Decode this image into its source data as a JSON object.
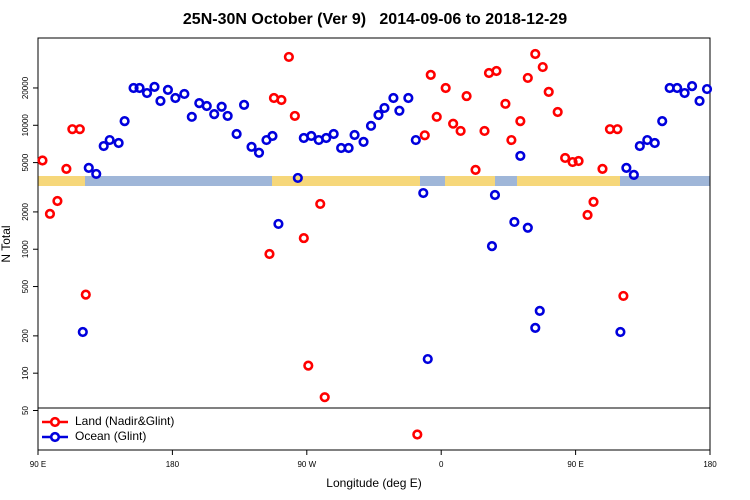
{
  "chart_data": {
    "type": "scatter",
    "title": "25N-30N October (Ver 9)   2014-09-06 to 2018-12-29",
    "xlabel": "Longitude (deg E)",
    "ylabel": "N Total",
    "xlim": [
      90,
      540
    ],
    "xticks": [
      {
        "value": 90,
        "label": "90 E"
      },
      180,
      {
        "value": 270,
        "label": "90 W"
      },
      {
        "value": 360,
        "label": "0"
      },
      {
        "value": 450,
        "label": "90 E"
      },
      {
        "value": 540,
        "label": "180"
      }
    ],
    "ylim": [
      24,
      50600
    ],
    "log_y": true,
    "yticks": [
      50,
      100,
      200,
      500,
      1000,
      2000,
      5000,
      10000,
      20000
    ],
    "legend": "bottom-left",
    "series": [
      {
        "name": "Land (Nadir&Glint)",
        "color": "#ff0000",
        "x": [
          93,
          98,
          103,
          109,
          113,
          118,
          122,
          245,
          248,
          253,
          258,
          262,
          268,
          271,
          279,
          282,
          344,
          349,
          353,
          357,
          363,
          368,
          373,
          377,
          383,
          389,
          392,
          397,
          403,
          407,
          413,
          418,
          423,
          428,
          432,
          438,
          443,
          448,
          452,
          458,
          462,
          468,
          473,
          478,
          482
        ],
        "values": [
          5200,
          1930,
          2450,
          4450,
          9300,
          9300,
          430,
          915,
          16600,
          16000,
          35600,
          11900,
          1230,
          115,
          2320,
          64,
          32,
          8300,
          25500,
          11700,
          20000,
          10300,
          9000,
          17200,
          4370,
          9000,
          26400,
          27400,
          14900,
          7600,
          10800,
          24100,
          37600,
          29500,
          18600,
          12800,
          5450,
          5050,
          5150,
          1890,
          2410,
          4450,
          9300,
          9300,
          420
        ]
      },
      {
        "name": "Ocean (Glint)",
        "color": "#0000dd",
        "x": [
          120,
          124,
          129,
          134,
          138,
          144,
          148,
          154,
          158,
          163,
          168,
          172,
          177,
          182,
          188,
          193,
          198,
          203,
          208,
          213,
          217,
          223,
          228,
          233,
          238,
          243,
          247,
          251,
          264,
          268,
          273,
          278,
          283,
          288,
          293,
          298,
          302,
          308,
          313,
          318,
          322,
          328,
          332,
          338,
          343,
          348,
          351,
          394,
          396,
          409,
          413,
          418,
          423,
          426,
          480,
          484,
          489,
          493,
          498,
          503,
          508,
          513,
          518,
          523,
          528,
          533,
          538
        ],
        "values": [
          215,
          4530,
          4050,
          6800,
          7600,
          7200,
          10800,
          20000,
          20000,
          18200,
          20400,
          15700,
          19300,
          16600,
          17900,
          11700,
          15100,
          14300,
          12300,
          14100,
          11900,
          8500,
          14600,
          6700,
          6000,
          7600,
          8200,
          1600,
          3760,
          7900,
          8200,
          7600,
          7900,
          8500,
          6560,
          6560,
          8350,
          7350,
          9900,
          12100,
          13800,
          16600,
          13100,
          16600,
          7600,
          2840,
          130,
          1060,
          2740,
          1660,
          5660,
          1490,
          232,
          318,
          215,
          4530,
          3980,
          6800,
          7600,
          7200,
          10800,
          20000,
          20000,
          18200,
          20700,
          15700,
          19600
        ]
      }
    ]
  }
}
